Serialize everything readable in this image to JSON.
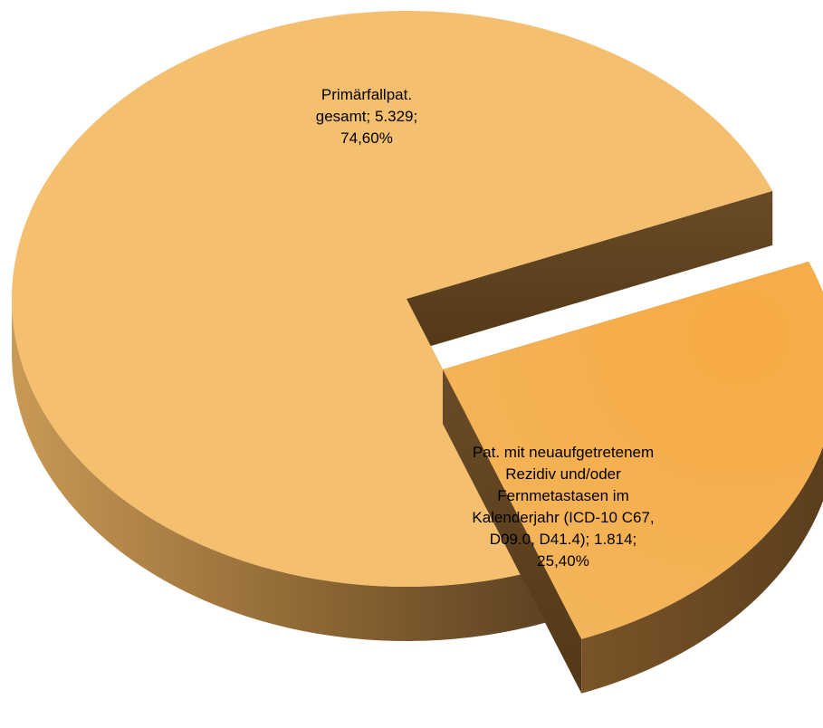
{
  "chart_data": {
    "type": "pie",
    "style": "3d-exploded",
    "title": "",
    "series": [
      {
        "values": [
          5329,
          1814
        ],
        "percentages": [
          74.6,
          25.4
        ]
      }
    ],
    "slices": [
      {
        "label_lines": [
          "Primärfallpat.",
          "gesamt; 5.329;",
          "74,60%"
        ],
        "value": 5329,
        "percent": 74.6,
        "color": "#F4BF6F",
        "side_color": "#A77D3E"
      },
      {
        "label_lines": [
          "Pat. mit neuaufgetretenem",
          "Rezidiv und/oder",
          "Fernmetastasen im",
          "Kalenderjahr (ICD-10 C67,",
          "D09.0, D41.4); 1.814;",
          "25,40%"
        ],
        "value": 1814,
        "percent": 25.4,
        "color": "#F5B04F",
        "side_color": "#6B4A22"
      }
    ],
    "legend": "none"
  }
}
